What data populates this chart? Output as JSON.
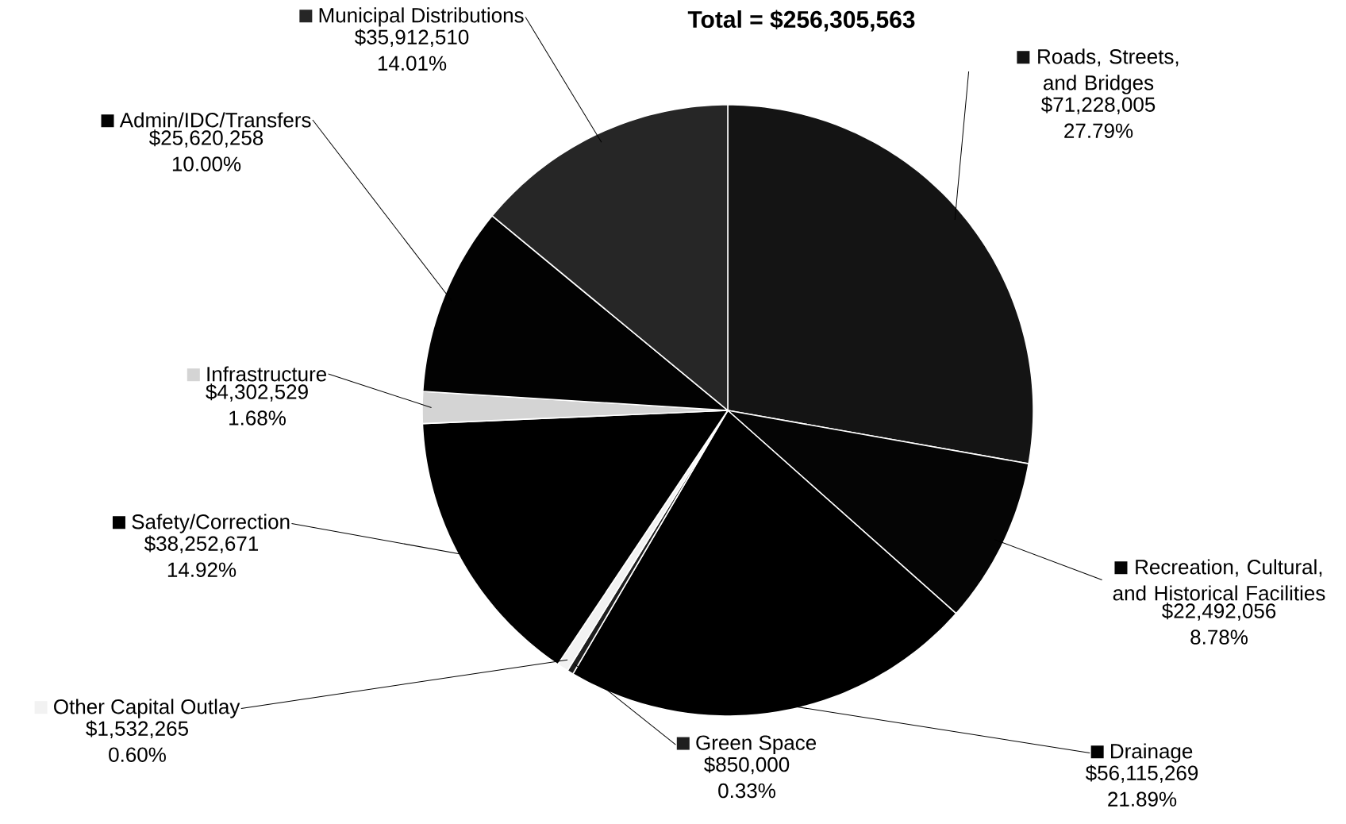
{
  "chart_data": {
    "type": "pie",
    "title": "Total = $256,305,563",
    "categories": [
      "Roads, Streets, and Bridges",
      "Recreation, Cultural, and Historical Facilities",
      "Drainage",
      "Green Space",
      "Other Capital Outlay",
      "Safety/Correction",
      "Infrastructure",
      "Admin/IDC/Transfers",
      "Municipal Distributions"
    ],
    "values": [
      71228005,
      22492056,
      56115269,
      850000,
      1532265,
      38252671,
      4302529,
      25620258,
      35912510
    ],
    "legend": "top left",
    "colors": [
      "#141414",
      "#050505",
      "#000000",
      "#1e1e1e",
      "#f2f2f2",
      "#000000",
      "#d4d4d4",
      "#020202",
      "#262626"
    ],
    "value_labels": [
      "$71,228,005 27.79%",
      "$22,492,056 8.78%",
      "$56,115,269 21.89%",
      "$850,000 0.33%",
      "$1,532,265 0.60%",
      "$38,252,671 14.92%",
      "$4,302,529 1.68%",
      "$25,620,258 10.00%",
      "$35,912,510 14.01%"
    ]
  }
}
